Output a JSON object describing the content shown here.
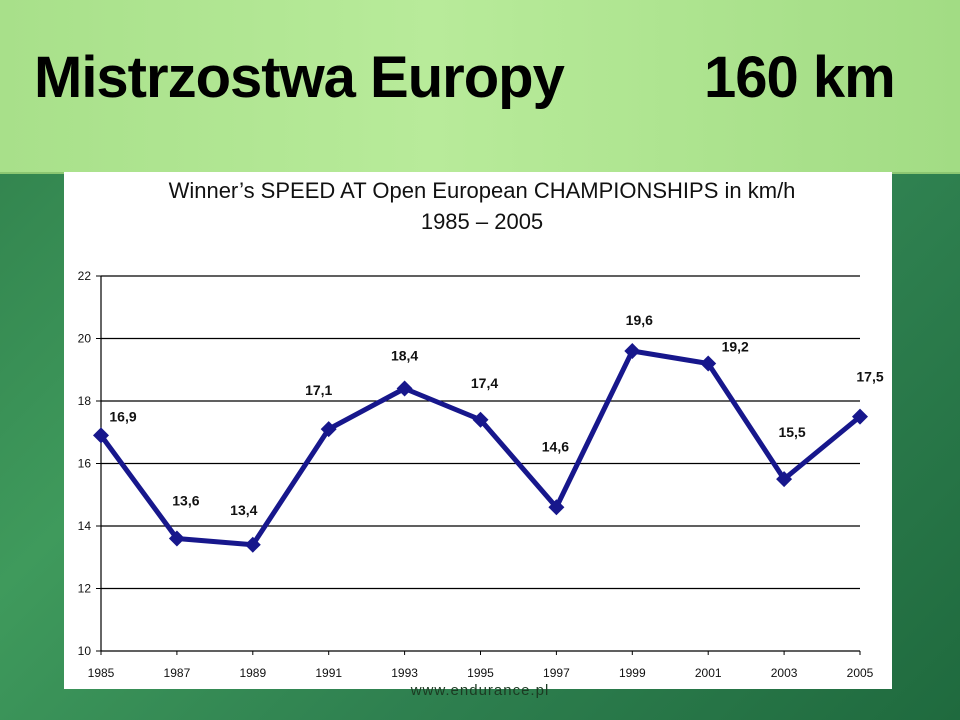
{
  "slide": {
    "title": "Mistrzostwa Europy",
    "subtitle": "160 km",
    "footer": "www.endurance.pl"
  },
  "colors": {
    "line": "#17178c",
    "grid": "#000000",
    "header_bg": "#aee48f",
    "slide_bg": "#2e7d4a"
  },
  "chart_data": {
    "type": "line",
    "title": "Winner’s SPEED AT Open European CHAMPIONSHIPS in km/h",
    "subtitle": "1985 – 2005",
    "x": [
      "1985",
      "1987",
      "1989",
      "1991",
      "1993",
      "1995",
      "1997",
      "1999",
      "2001",
      "2003",
      "2005"
    ],
    "values": [
      16.9,
      13.6,
      13.4,
      17.1,
      18.4,
      17.4,
      14.6,
      19.6,
      19.2,
      15.5,
      17.5
    ],
    "labels": [
      "16,9",
      "13,6",
      "13,4",
      "17,1",
      "18,4",
      "17,4",
      "14,6",
      "19,6",
      "19,2",
      "15,5",
      "17,5"
    ],
    "ylim": [
      10,
      22
    ],
    "yticks": [
      "10",
      "12",
      "14",
      "16",
      "18",
      "20",
      "22"
    ],
    "grid": true,
    "legend": "none",
    "marker": "diamond"
  }
}
